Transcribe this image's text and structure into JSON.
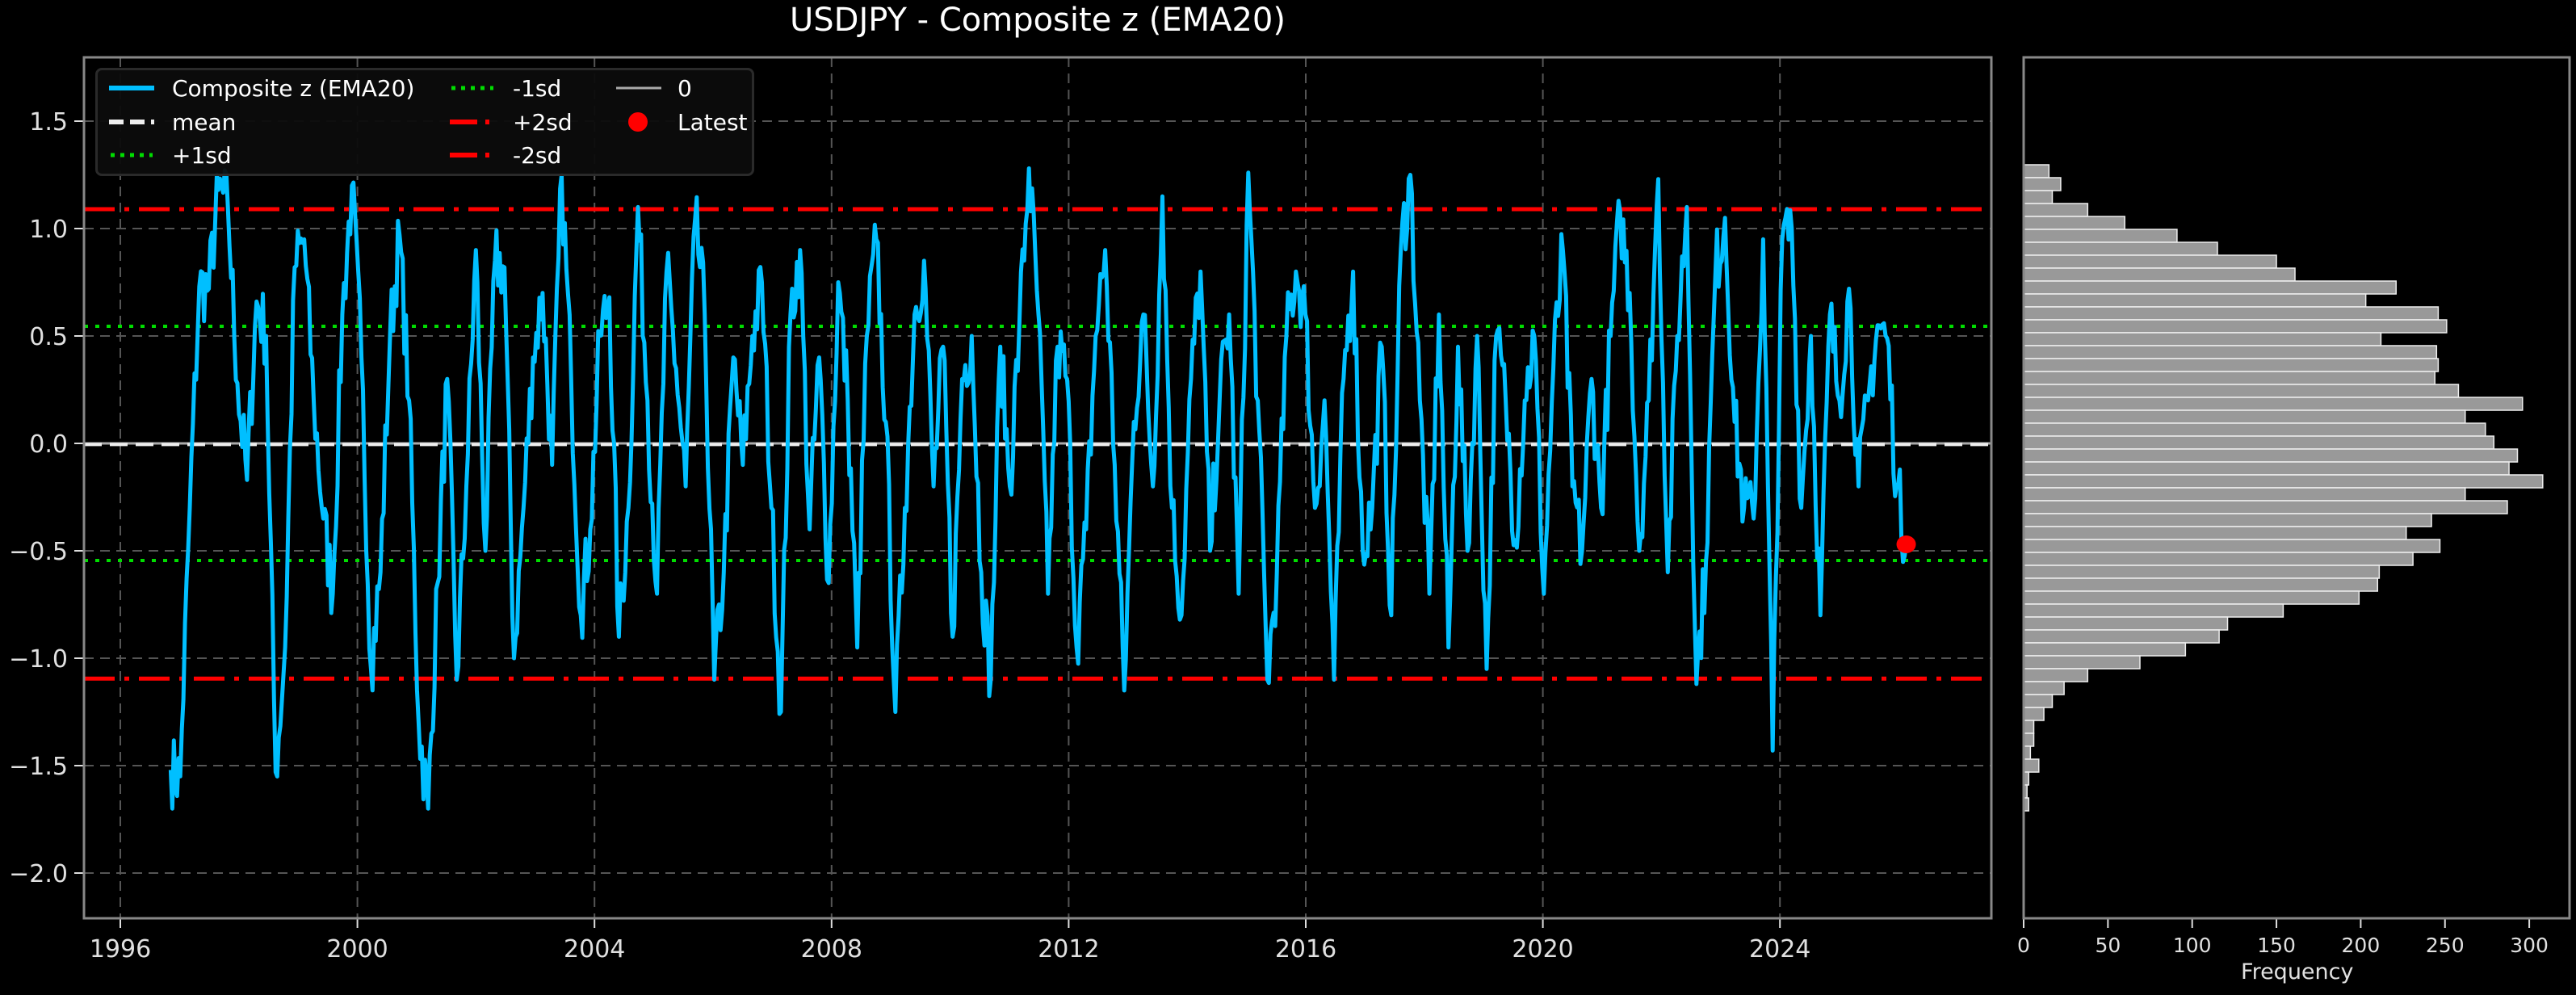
{
  "title": "USDJPY - Composite z (EMA20)",
  "colors": {
    "background": "#000000",
    "series": "#00bfff",
    "mean": "#ffffff",
    "sd1": "#00dd00",
    "sd2": "#ff0000",
    "zero": "#aaaaaa",
    "latest": "#ff0000",
    "hist_bar": "#999999",
    "grid": "#555555",
    "spine": "#888888"
  },
  "legend": {
    "items": [
      {
        "label": "Composite z (EMA20)",
        "style": "solid-blue"
      },
      {
        "label": "mean",
        "style": "dashed-white"
      },
      {
        "label": "+1sd",
        "style": "dotted-green"
      },
      {
        "label": "-1sd",
        "style": "dotted-green"
      },
      {
        "label": "+2sd",
        "style": "dashdot-red"
      },
      {
        "label": "-2sd",
        "style": "dashdot-red"
      },
      {
        "label": "0",
        "style": "solid-gray"
      },
      {
        "label": "Latest",
        "style": "marker-red"
      }
    ]
  },
  "hist_xlabel": "Frequency",
  "chart_data": [
    {
      "type": "line",
      "title": "USDJPY - Composite z (EMA20)",
      "xlabel": "",
      "ylabel": "",
      "xlim": [
        1995.7,
        2028.2
      ],
      "ylim": [
        -2.22,
        1.8
      ],
      "x_ticks": [
        "1996",
        "2000",
        "2004",
        "2008",
        "2012",
        "2016",
        "2020",
        "2024"
      ],
      "y_ticks": [
        "−2.0",
        "−1.5",
        "−1.0",
        "−0.5",
        "0.0",
        "0.5",
        "1.0",
        "1.5"
      ],
      "grid": true,
      "legend_position": "upper left",
      "reference_lines": {
        "mean": -0.005,
        "plus_1sd": 0.545,
        "minus_1sd": -0.545,
        "plus_2sd": 1.09,
        "minus_2sd": -1.095,
        "zero": 0.0
      },
      "latest": {
        "x": 2026.13,
        "y": -0.47
      },
      "series": [
        {
          "name": "Composite z (EMA20)",
          "x_start": 1996.85,
          "x_end": 2026.13,
          "values": [
            -1.52,
            -1.55,
            -0.3,
            0.73,
            0.72,
            1.18,
            1.1,
            0.28,
            -0.17,
            0.66,
            0.5,
            -1.53,
            -0.95,
            0.82,
            0.95,
            0.2,
            -0.35,
            -0.7,
            0.6,
            1.2,
            0.4,
            -1.05,
            -0.6,
            0.5,
            0.97,
            0.2,
            -1.3,
            -1.7,
            -0.65,
            0.3,
            -1.1,
            -0.2,
            0.9,
            -0.5,
            0.85,
            0.82,
            -1.0,
            -0.3,
            0.4,
            0.7,
            -0.1,
            1.25,
            0.3,
            -0.8,
            -0.4,
            0.5,
            0.68,
            -0.9,
            -0.3,
            1.1,
            0.2,
            -0.7,
            0.8,
            0.35,
            -0.2,
            1.05,
            0.6,
            -1.1,
            -0.6,
            0.4,
            -0.1,
            0.5,
            0.75,
            -0.3,
            -1.25,
            0.6,
            0.9,
            -0.4,
            0.4,
            -0.65,
            0.75,
            0.2,
            -0.95,
            0.5,
            0.95,
            0.1,
            -1.25,
            -0.3,
            0.6,
            0.85,
            -0.2,
            0.45,
            -0.9,
            0.3,
            0.5,
            -0.6,
            -1.1,
            0.45,
            -0.2,
            0.55,
            1.28,
            0.6,
            -0.7,
            0.45,
            0.3,
            -0.95,
            -0.4,
            0.5,
            0.9,
            -0.1,
            -1.15,
            0.1,
            0.6,
            -0.2,
            1.15,
            -0.3,
            -0.8,
            0.3,
            0.8,
            -0.5,
            0.2,
            0.6,
            -0.7,
            1.26,
            0.2,
            -1.1,
            -0.6,
            0.5,
            0.8,
            0.6,
            -0.3,
            0.2,
            -1.1,
            0.3,
            0.8,
            -0.5,
            -0.3,
            0.45,
            -0.8,
            0.9,
            1.25,
            0.2,
            -0.7,
            0.6,
            -0.95,
            0.45,
            -0.5,
            0.5,
            -1.05,
            0.5,
            0.2,
            -0.45,
            0.2,
            0.5,
            -0.7,
            0.35,
            0.9,
            -0.2,
            -0.5,
            0.3,
            -0.3,
            0.5,
            1.08,
            0.7,
            -0.5,
            0.2,
            1.23,
            -0.6,
            0.5,
            1.1,
            -1.12,
            -0.55,
            0.8,
            1.05,
            0.1,
            -0.3,
            -0.35,
            0.95,
            -1.43,
            0.95,
            1.0,
            -0.3,
            0.5,
            -0.8,
            0.6,
            0.2,
            0.72,
            -0.2,
            0.2,
            0.55,
            0.49,
            -0.2,
            -0.47
          ]
        }
      ]
    },
    {
      "type": "bar",
      "orientation": "horizontal",
      "xlabel": "Frequency",
      "ylabel": "",
      "xlim": [
        0,
        325
      ],
      "x_ticks": [
        "0",
        "50",
        "100",
        "150",
        "200",
        "250",
        "300"
      ],
      "bin_range": [
        -1.71,
        1.297
      ],
      "bin_width": 0.06,
      "bins_top_to_bottom": [
        15,
        22,
        17,
        38,
        60,
        91,
        115,
        150,
        161,
        221,
        203,
        246,
        251,
        212,
        245,
        246,
        244,
        258,
        296,
        262,
        274,
        279,
        293,
        288,
        308,
        262,
        287,
        242,
        227,
        247,
        231,
        211,
        210,
        199,
        154,
        121,
        116,
        96,
        69,
        38,
        24,
        17,
        12,
        6,
        6,
        4,
        9,
        3,
        2,
        3
      ]
    }
  ]
}
